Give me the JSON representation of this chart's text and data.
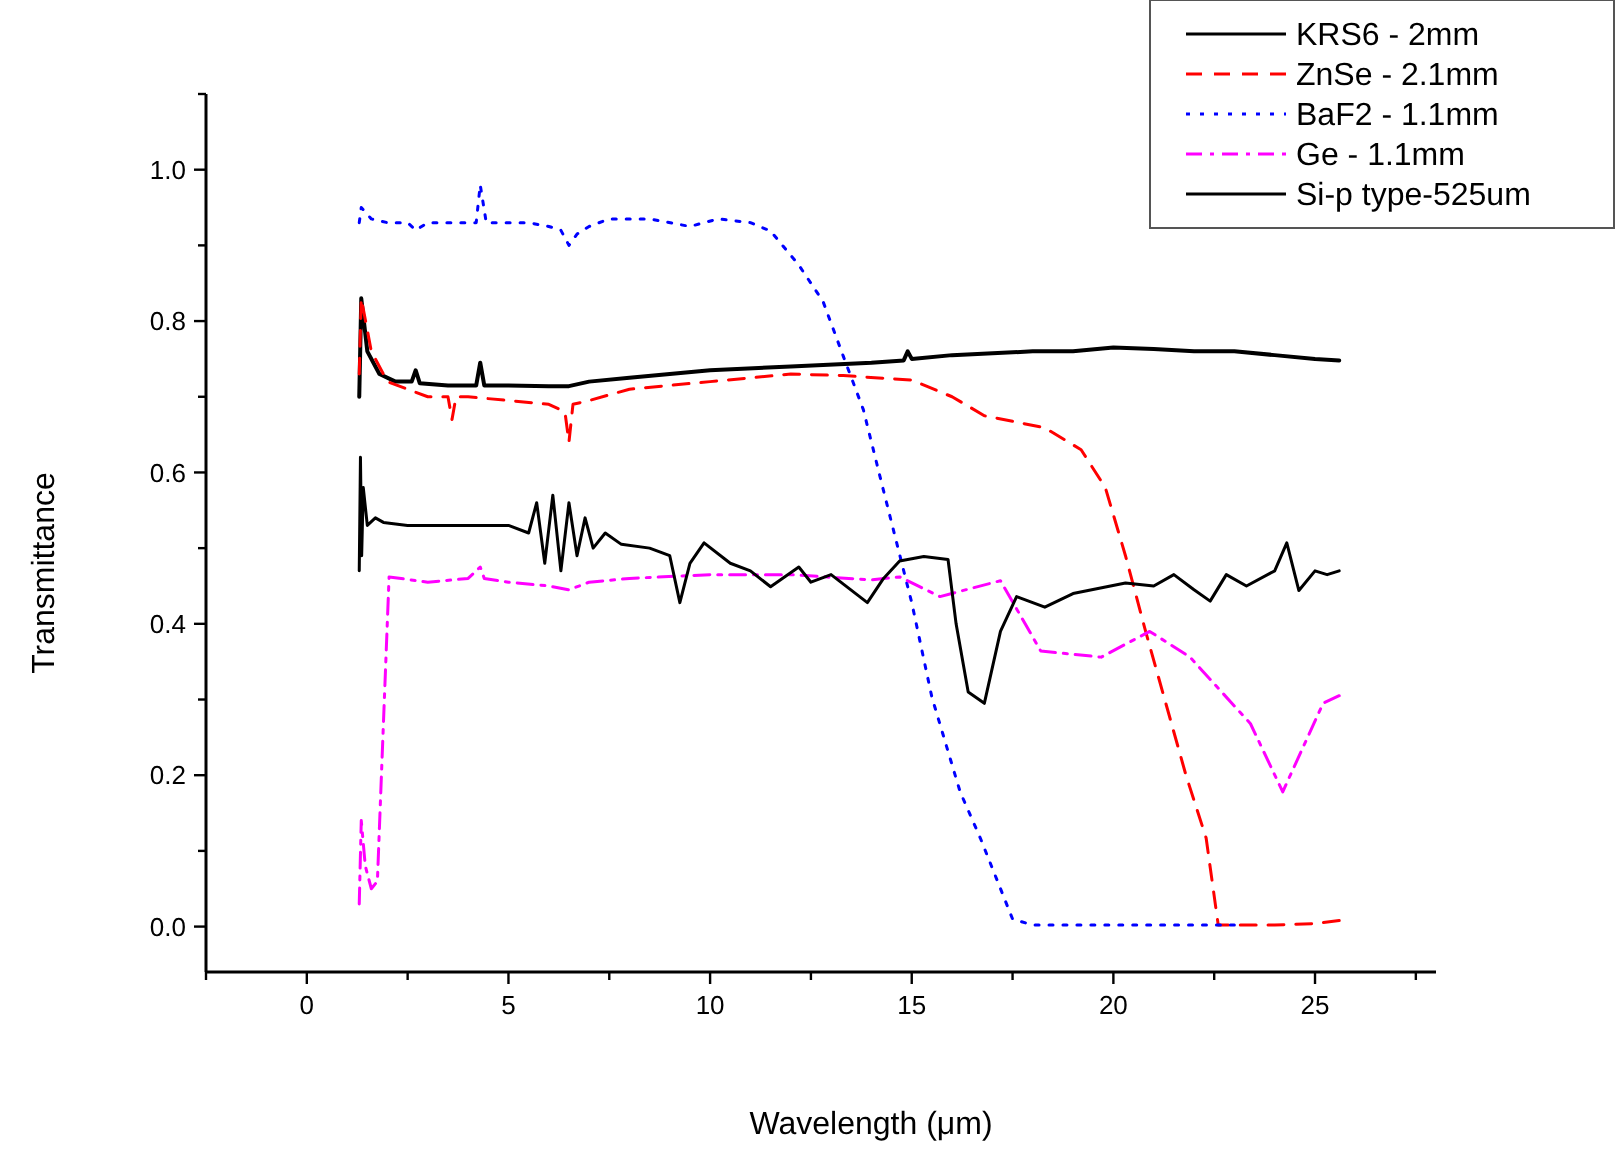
{
  "chart_data": {
    "type": "line",
    "xlabel": "Wavelength (μm)",
    "ylabel": "Transmittance",
    "xlim": [
      -2.5,
      28
    ],
    "ylim": [
      -0.06,
      1.1
    ],
    "xticks": [
      {
        "value": -2.5,
        "label": null
      },
      0,
      {
        "value": 2.5,
        "label": null
      },
      5,
      {
        "value": 7.5,
        "label": null
      },
      10,
      {
        "value": 12.5,
        "label": null
      },
      15,
      {
        "value": 17.5,
        "label": null
      },
      20,
      {
        "value": 22.5,
        "label": null
      },
      25,
      {
        "value": 27.5,
        "label": null
      }
    ],
    "yticks": [
      {
        "value": 0,
        "label": "0.0"
      },
      {
        "value": 0.1,
        "label": null
      },
      {
        "value": 0.2,
        "label": "0.2"
      },
      {
        "value": 0.3,
        "label": null
      },
      {
        "value": 0.4,
        "label": "0.4"
      },
      {
        "value": 0.5,
        "label": null
      },
      {
        "value": 0.6,
        "label": "0.6"
      },
      {
        "value": 0.7,
        "label": null
      },
      {
        "value": 0.8,
        "label": "0.8"
      },
      {
        "value": 0.9,
        "label": null
      },
      {
        "value": 1.0,
        "label": "1.0"
      },
      {
        "value": 1.1,
        "label": null
      }
    ],
    "grid": false,
    "legend": "top right",
    "marker": "none",
    "series": [
      {
        "name": "KRS6 - 2mm",
        "color": "#000000",
        "line_style": "solid",
        "x": [
          1.3,
          1.35,
          1.5,
          1.8,
          2.2,
          2.6,
          2.7,
          2.8,
          3.5,
          4.2,
          4.3,
          4.4,
          5,
          6,
          6.5,
          7,
          8,
          10,
          12,
          14,
          14.8,
          14.9,
          15,
          16,
          18,
          19,
          20,
          21,
          22,
          23,
          24,
          25,
          25.6
        ],
        "values": [
          0.7,
          0.83,
          0.76,
          0.73,
          0.72,
          0.72,
          0.735,
          0.718,
          0.715,
          0.715,
          0.745,
          0.715,
          0.715,
          0.714,
          0.714,
          0.72,
          0.725,
          0.735,
          0.74,
          0.745,
          0.748,
          0.76,
          0.75,
          0.755,
          0.76,
          0.76,
          0.765,
          0.763,
          0.76,
          0.76,
          0.755,
          0.75,
          0.748
        ]
      },
      {
        "name": "ZnSe - 2.1mm",
        "color": "#ff0000",
        "line_style": "dashed",
        "x": [
          1.3,
          1.35,
          1.6,
          2,
          2.5,
          3,
          3.5,
          3.6,
          3.7,
          4,
          5,
          6,
          6.4,
          6.5,
          6.6,
          7,
          8,
          10,
          12,
          13.3,
          15,
          16,
          16.8,
          18.3,
          19.2,
          19.8,
          20.3,
          20.8,
          21.3,
          21.8,
          22.3,
          22.6,
          23,
          24,
          25,
          25.6
        ],
        "values": [
          0.73,
          0.83,
          0.76,
          0.72,
          0.71,
          0.7,
          0.7,
          0.67,
          0.7,
          0.7,
          0.695,
          0.69,
          0.68,
          0.64,
          0.69,
          0.695,
          0.71,
          0.72,
          0.73,
          0.728,
          0.722,
          0.7,
          0.675,
          0.659,
          0.63,
          0.58,
          0.49,
          0.39,
          0.295,
          0.2,
          0.117,
          0.002,
          0.002,
          0.002,
          0.004,
          0.008
        ]
      },
      {
        "name": "BaF2 - 1.1mm",
        "color": "#0000ff",
        "line_style": "dotted",
        "x": [
          1.3,
          1.35,
          1.6,
          2,
          2.5,
          2.7,
          3,
          4,
          4.2,
          4.3,
          4.45,
          5,
          5.5,
          6,
          6.3,
          6.5,
          6.7,
          7,
          7.5,
          8.5,
          9.5,
          10.2,
          11,
          11.5,
          12.2,
          12.8,
          13.3,
          13.8,
          14.3,
          15,
          15.5,
          16.2,
          16.7,
          17.5,
          18,
          20,
          22,
          23
        ],
        "values": [
          0.93,
          0.95,
          0.935,
          0.93,
          0.93,
          0.92,
          0.93,
          0.93,
          0.93,
          0.98,
          0.93,
          0.93,
          0.93,
          0.925,
          0.92,
          0.9,
          0.915,
          0.925,
          0.935,
          0.935,
          0.925,
          0.935,
          0.93,
          0.919,
          0.874,
          0.826,
          0.754,
          0.683,
          0.576,
          0.428,
          0.303,
          0.178,
          0.117,
          0.01,
          0.002,
          0.002,
          0.002,
          0.002
        ]
      },
      {
        "name": "Ge - 1.1mm",
        "color": "#ff00ff",
        "line_style": "dashdot",
        "x": [
          1.3,
          1.35,
          1.45,
          1.6,
          1.75,
          1.85,
          2.04,
          3,
          4,
          4.3,
          4.4,
          5,
          6,
          6.5,
          7,
          8,
          10,
          12,
          14,
          14.7,
          15.7,
          17.2,
          18.2,
          19.7,
          20.9,
          21.9,
          23.4,
          24.2,
          25.2,
          25.6
        ],
        "values": [
          0.03,
          0.14,
          0.08,
          0.05,
          0.06,
          0.2,
          0.462,
          0.455,
          0.46,
          0.475,
          0.46,
          0.455,
          0.45,
          0.445,
          0.455,
          0.46,
          0.465,
          0.465,
          0.458,
          0.462,
          0.436,
          0.457,
          0.364,
          0.356,
          0.39,
          0.356,
          0.268,
          0.178,
          0.295,
          0.305
        ]
      },
      {
        "name": "Si-p type-525um",
        "color": "#000000",
        "line_style": "solid",
        "x": [
          1.3,
          1.33,
          1.36,
          1.4,
          1.5,
          1.7,
          1.9,
          2.5,
          3,
          3.5,
          4,
          4.5,
          5,
          5.5,
          5.7,
          5.9,
          6.1,
          6.3,
          6.5,
          6.7,
          6.9,
          7.1,
          7.4,
          7.8,
          8.5,
          9,
          9.25,
          9.5,
          9.85,
          10.5,
          11,
          11.5,
          12.2,
          12.5,
          13,
          13.9,
          14.3,
          14.7,
          15.3,
          15.9,
          16.1,
          16.4,
          16.8,
          17.2,
          17.6,
          18.3,
          19,
          20.3,
          21,
          21.5,
          22,
          22.4,
          22.8,
          23.3,
          24,
          24.3,
          24.6,
          25,
          25.3,
          25.6
        ],
        "values": [
          0.47,
          0.62,
          0.49,
          0.58,
          0.53,
          0.54,
          0.534,
          0.53,
          0.53,
          0.53,
          0.53,
          0.53,
          0.53,
          0.52,
          0.56,
          0.48,
          0.57,
          0.47,
          0.56,
          0.49,
          0.54,
          0.5,
          0.52,
          0.505,
          0.5,
          0.49,
          0.428,
          0.48,
          0.507,
          0.48,
          0.47,
          0.449,
          0.475,
          0.455,
          0.465,
          0.428,
          0.46,
          0.483,
          0.489,
          0.485,
          0.4,
          0.31,
          0.295,
          0.39,
          0.436,
          0.422,
          0.44,
          0.454,
          0.45,
          0.465,
          0.445,
          0.43,
          0.465,
          0.45,
          0.47,
          0.507,
          0.444,
          0.47,
          0.465,
          0.47
        ]
      }
    ]
  }
}
